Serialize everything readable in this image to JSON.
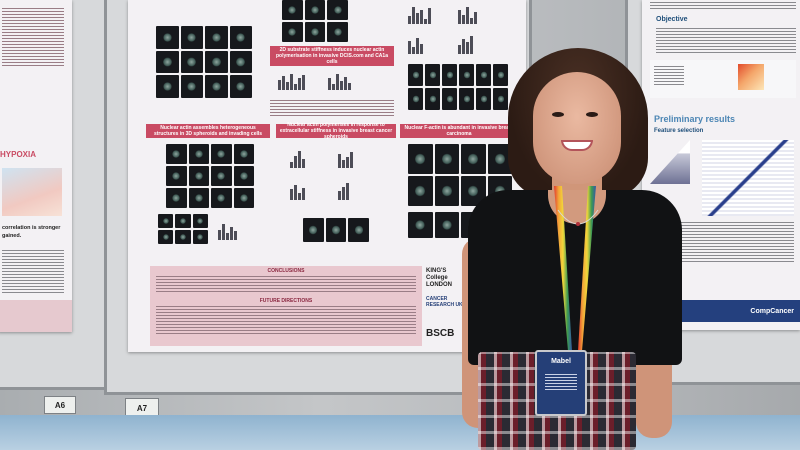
{
  "board_labels": [
    "A6",
    "A7"
  ],
  "left_poster": {
    "heading": "HYPOXIA",
    "line_1": "correlation is stronger",
    "line_2": "gained."
  },
  "center_poster": {
    "section_headers": [
      "2D substrate stiffness induces nuclear actin polymerisation in invasive DCIS.com and CA1a cells",
      "Nuclear actin assembles heterogeneous structures in 3D spheroids and invading cells",
      "Nuclear actin polymerises in response to extracellular stiffness in invasive breast cancer spheroids",
      "Nuclear F-actin is abundant in invasive breast carcinoma"
    ],
    "conclusions_title": "CONCLUSIONS",
    "future_title": "FUTURE DIRECTIONS",
    "logos": [
      "KING'S College LONDON",
      "CANCER RESEARCH UK",
      "BSCB"
    ]
  },
  "right_poster": {
    "objective_title": "Objective",
    "preliminary_title": "Preliminary results",
    "feature_title": "Feature selection",
    "footer_logo": "CompCancer"
  },
  "badge": {
    "name": "Mabel"
  },
  "colors": {
    "poster_header_pink": "#c94b63",
    "right_poster_blue": "#24407e",
    "badge_blue": "#253f77"
  }
}
